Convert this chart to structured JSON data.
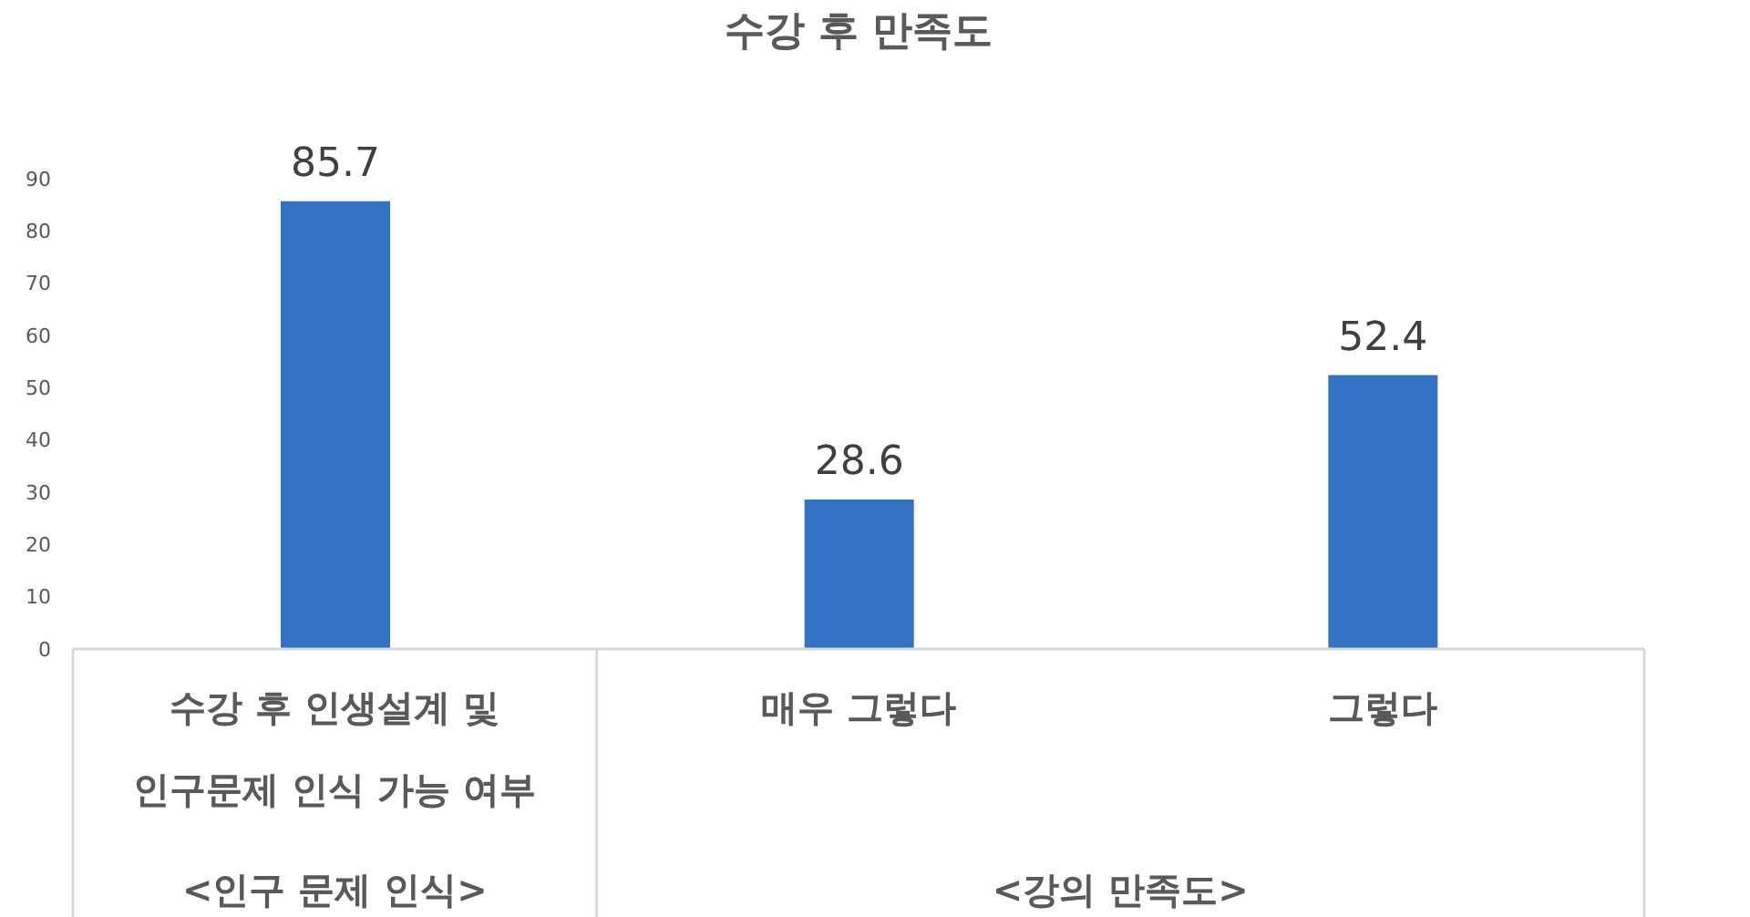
{
  "chart_data": {
    "type": "bar",
    "title": "수강 후 만족도",
    "categories": [
      "수강 후 인생설계 및 인구문제 인식 가능 여부",
      "매우 그렇다",
      "그렇다"
    ],
    "values": [
      85.7,
      28.6,
      52.4
    ],
    "color": "#3473c4",
    "ylim": [
      0,
      90
    ],
    "yticks": [
      0,
      10,
      20,
      30,
      40,
      50,
      60,
      70,
      80,
      90
    ],
    "data_labels": true,
    "annotations": [
      "<인구 문제 인식>",
      "<강의 만족도>"
    ]
  }
}
